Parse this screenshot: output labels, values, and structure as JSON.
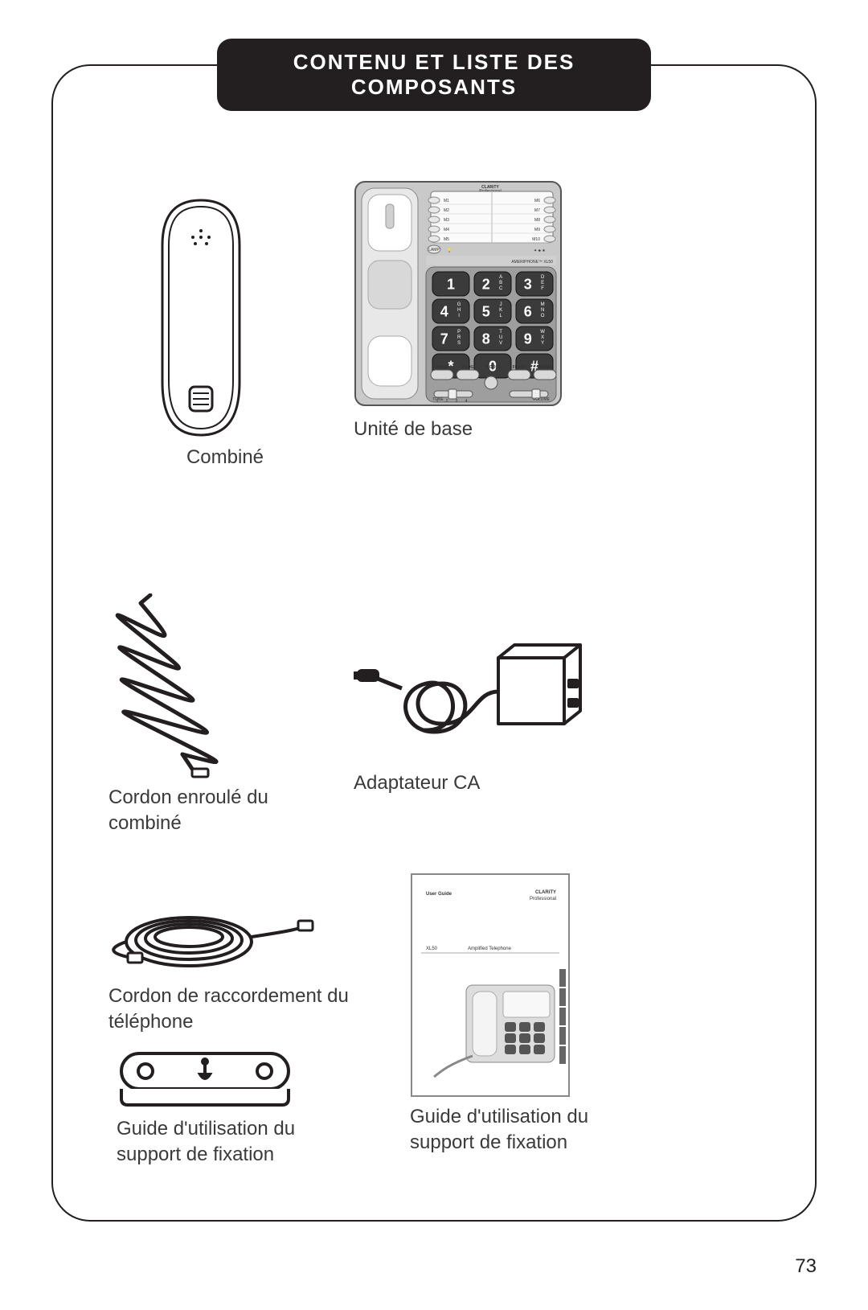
{
  "header": {
    "title": "CONTENU ET LISTE DES COMPOSANTS"
  },
  "page_number": "73",
  "colors": {
    "ink": "#231f20",
    "paper": "#ffffff",
    "grey_panel": "#c9c9c9",
    "mid_grey": "#9e9e9e",
    "dark_key": "#3b3b3b"
  },
  "handset": {
    "caption": "Combiné"
  },
  "baseunit": {
    "caption": "Unité de base",
    "brand_top": "CLARiTY",
    "brand_top_sub": "Professional",
    "model_strip": "AMERIPHONE™ XL50",
    "memory_left": [
      "M1",
      "M2",
      "M3",
      "M4",
      "M5"
    ],
    "memory_right": [
      "M6",
      "M7",
      "M8",
      "M9",
      "M10"
    ],
    "lamp_label": "LAMP",
    "keypad": [
      {
        "n": "1",
        "s": ""
      },
      {
        "n": "2",
        "s": "ABC"
      },
      {
        "n": "3",
        "s": "DEF"
      },
      {
        "n": "4",
        "s": "GHI"
      },
      {
        "n": "5",
        "s": "JKL"
      },
      {
        "n": "6",
        "s": "MNO"
      },
      {
        "n": "7",
        "s": "PRS"
      },
      {
        "n": "8",
        "s": "TUV"
      },
      {
        "n": "9",
        "s": "WXY"
      },
      {
        "n": "*",
        "s": ""
      },
      {
        "n": "0",
        "s": ""
      },
      {
        "n": "#",
        "s": ""
      }
    ],
    "func_row": [
      "HOLD",
      "PROG",
      "BOOST",
      "FLASH",
      "REDIAL"
    ],
    "tone_label": "TONE",
    "tone_marks": [
      "1",
      "2",
      "3",
      "4"
    ],
    "volume_label": "VOLUME"
  },
  "coilcord": {
    "caption": "Cordon enroulé du combiné"
  },
  "adapter": {
    "caption": "Adaptateur CA"
  },
  "linecord": {
    "caption": "Cordon de raccordement du téléphone"
  },
  "bracket": {
    "caption": "Guide d'utilisation du support de fixation"
  },
  "guide": {
    "caption": "Guide d'utilisation du support de fixation",
    "cover_userguide": "User Guide",
    "cover_brand": "CLARiTY",
    "cover_brand_sub": "Professional",
    "cover_model": "XL50",
    "cover_model_sub": "Amplified Telephone"
  }
}
